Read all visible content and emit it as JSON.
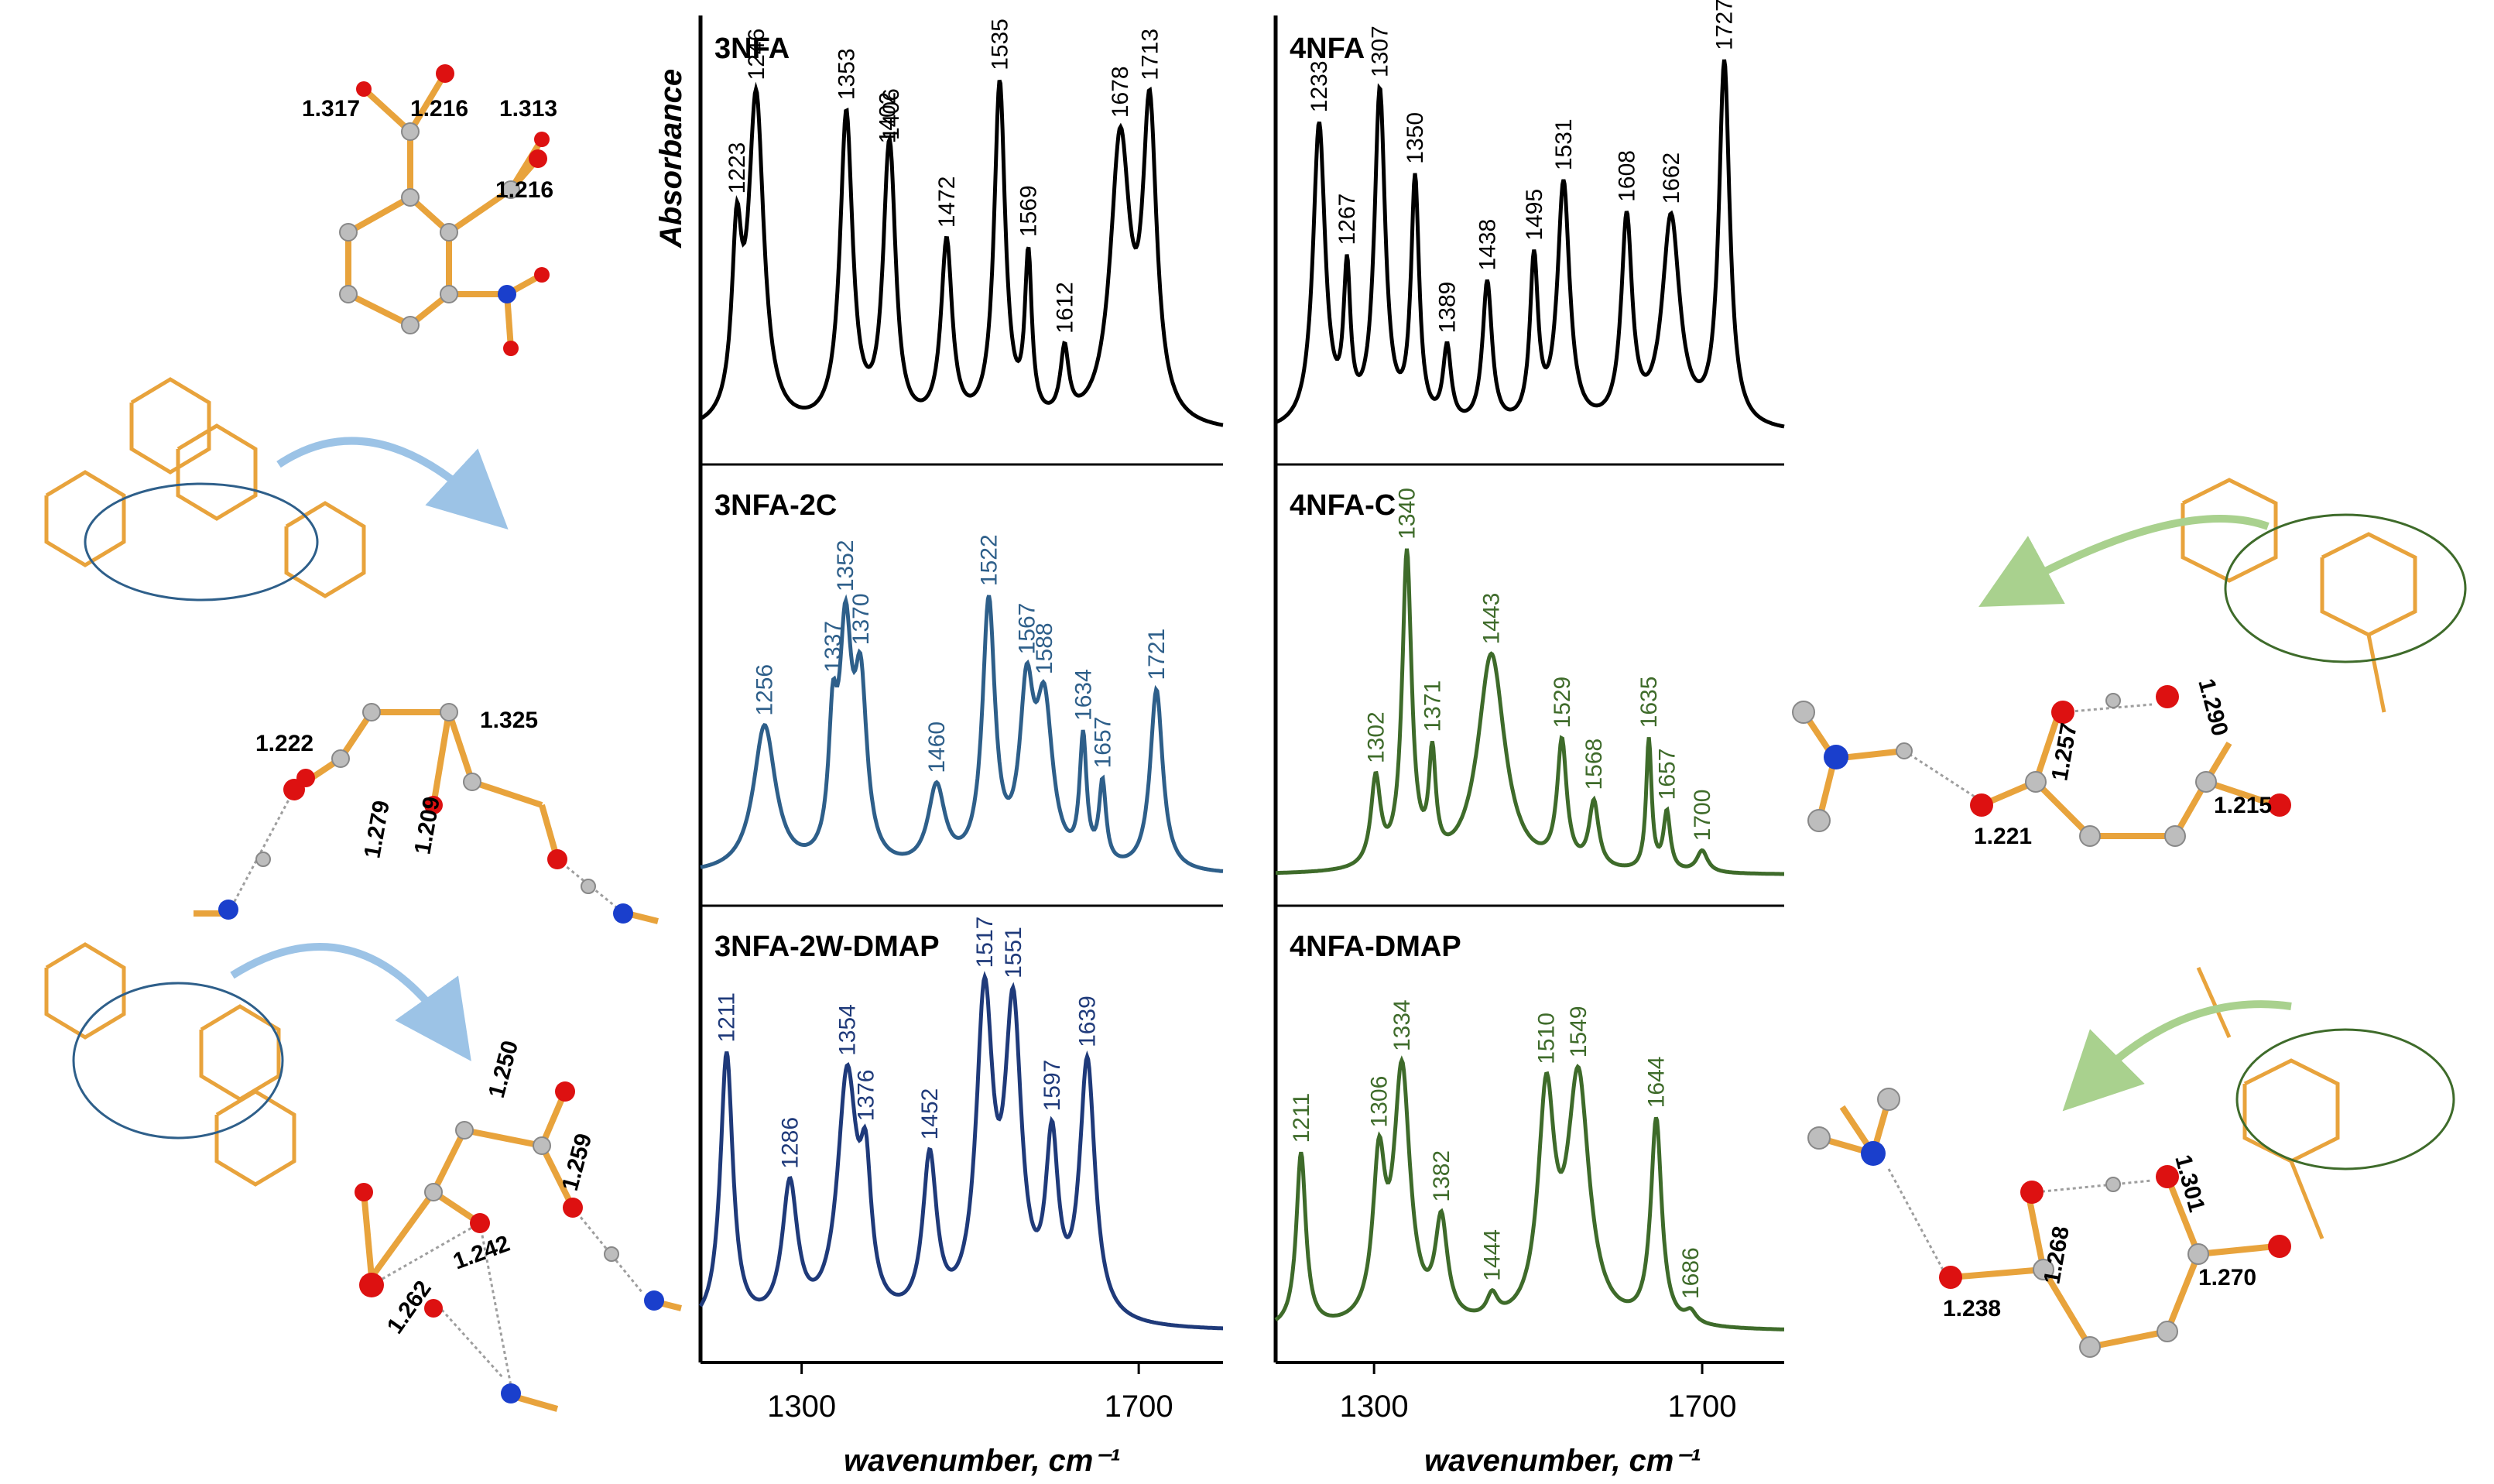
{
  "chart_data": {
    "type": "line",
    "x_unit": "wavenumber, cm⁻¹",
    "xlabel": "wavenumber, cm⁻¹",
    "ylabel": "Absorbance",
    "xlim": [
      1180,
      1800
    ],
    "x_ticks": [
      "1300",
      "1700"
    ],
    "panels": [
      {
        "title": "3NFA",
        "column": 0,
        "row": 0,
        "color": "#000000",
        "peaks": [
          {
            "x": 1223,
            "h": 0.44,
            "w": 7
          },
          {
            "x": 1246,
            "h": 0.86,
            "w": 11
          },
          {
            "x": 1353,
            "h": 0.82,
            "w": 9
          },
          {
            "x": 1402,
            "h": 0.36,
            "w": 8
          },
          {
            "x": 1406,
            "h": 0.42,
            "w": 8
          },
          {
            "x": 1472,
            "h": 0.48,
            "w": 8
          },
          {
            "x": 1535,
            "h": 0.9,
            "w": 8
          },
          {
            "x": 1569,
            "h": 0.42,
            "w": 5
          },
          {
            "x": 1612,
            "h": 0.18,
            "w": 6
          },
          {
            "x": 1678,
            "h": 0.74,
            "w": 14
          },
          {
            "x": 1713,
            "h": 0.8,
            "w": 10
          }
        ]
      },
      {
        "title": "4NFA",
        "column": 1,
        "row": 0,
        "color": "#000000",
        "peaks": [
          {
            "x": 1233,
            "h": 0.8,
            "w": 9
          },
          {
            "x": 1267,
            "h": 0.38,
            "w": 5
          },
          {
            "x": 1307,
            "h": 0.88,
            "w": 8
          },
          {
            "x": 1350,
            "h": 0.64,
            "w": 6
          },
          {
            "x": 1389,
            "h": 0.2,
            "w": 6
          },
          {
            "x": 1438,
            "h": 0.38,
            "w": 7
          },
          {
            "x": 1495,
            "h": 0.43,
            "w": 6
          },
          {
            "x": 1531,
            "h": 0.64,
            "w": 9
          },
          {
            "x": 1608,
            "h": 0.54,
            "w": 8
          },
          {
            "x": 1662,
            "h": 0.55,
            "w": 13
          },
          {
            "x": 1727,
            "h": 0.96,
            "w": 8
          }
        ]
      },
      {
        "title": "3NFA-2C",
        "column": 0,
        "row": 1,
        "color": "#2e5f8a",
        "peaks": [
          {
            "x": 1256,
            "h": 0.4,
            "w": 16
          },
          {
            "x": 1337,
            "h": 0.32,
            "w": 6
          },
          {
            "x": 1352,
            "h": 0.6,
            "w": 9
          },
          {
            "x": 1370,
            "h": 0.46,
            "w": 9
          },
          {
            "x": 1460,
            "h": 0.22,
            "w": 12
          },
          {
            "x": 1522,
            "h": 0.72,
            "w": 9
          },
          {
            "x": 1567,
            "h": 0.44,
            "w": 10
          },
          {
            "x": 1588,
            "h": 0.42,
            "w": 12
          },
          {
            "x": 1634,
            "h": 0.34,
            "w": 5
          },
          {
            "x": 1657,
            "h": 0.22,
            "w": 5
          },
          {
            "x": 1721,
            "h": 0.5,
            "w": 9
          }
        ]
      },
      {
        "title": "4NFA-C",
        "column": 1,
        "row": 1,
        "color": "#3e6b2a",
        "peaks": [
          {
            "x": 1302,
            "h": 0.24,
            "w": 7
          },
          {
            "x": 1340,
            "h": 0.86,
            "w": 7
          },
          {
            "x": 1371,
            "h": 0.28,
            "w": 5
          },
          {
            "x": 1443,
            "h": 0.6,
            "w": 20
          },
          {
            "x": 1529,
            "h": 0.34,
            "w": 7
          },
          {
            "x": 1568,
            "h": 0.18,
            "w": 7
          },
          {
            "x": 1635,
            "h": 0.36,
            "w": 4
          },
          {
            "x": 1657,
            "h": 0.16,
            "w": 5
          },
          {
            "x": 1700,
            "h": 0.06,
            "w": 8
          }
        ]
      },
      {
        "title": "3NFA-2W-DMAP",
        "column": 0,
        "row": 2,
        "color": "#1f3a7a",
        "peaks": [
          {
            "x": 1211,
            "h": 0.72,
            "w": 9
          },
          {
            "x": 1286,
            "h": 0.36,
            "w": 11
          },
          {
            "x": 1354,
            "h": 0.64,
            "w": 14
          },
          {
            "x": 1376,
            "h": 0.32,
            "w": 8
          },
          {
            "x": 1452,
            "h": 0.42,
            "w": 10
          },
          {
            "x": 1517,
            "h": 0.82,
            "w": 12
          },
          {
            "x": 1551,
            "h": 0.78,
            "w": 12
          },
          {
            "x": 1597,
            "h": 0.44,
            "w": 9
          },
          {
            "x": 1639,
            "h": 0.68,
            "w": 11
          }
        ]
      },
      {
        "title": "4NFA-DMAP",
        "column": 1,
        "row": 2,
        "color": "#3e6b2a",
        "peaks": [
          {
            "x": 1211,
            "h": 0.46,
            "w": 7
          },
          {
            "x": 1306,
            "h": 0.4,
            "w": 9
          },
          {
            "x": 1334,
            "h": 0.66,
            "w": 12
          },
          {
            "x": 1382,
            "h": 0.26,
            "w": 9
          },
          {
            "x": 1444,
            "h": 0.06,
            "w": 8
          },
          {
            "x": 1510,
            "h": 0.58,
            "w": 12
          },
          {
            "x": 1549,
            "h": 0.64,
            "w": 16
          },
          {
            "x": 1644,
            "h": 0.54,
            "w": 8
          },
          {
            "x": 1686,
            "h": 0.03,
            "w": 8
          }
        ]
      }
    ]
  },
  "structures": {
    "s3nfa": [
      "1.317",
      "1.216",
      "1.313",
      "1.216"
    ],
    "s3nfa2c": [
      "1.222",
      "1.279",
      "1.209",
      "1.325"
    ],
    "s3nfa2w": [
      "1.250",
      "1.259",
      "1.262",
      "1.242"
    ],
    "s4nfac": [
      "1.257",
      "1.290",
      "1.221",
      "1.215"
    ],
    "s4nfadmap": [
      "1.301",
      "1.268",
      "1.238",
      "1.270"
    ]
  }
}
